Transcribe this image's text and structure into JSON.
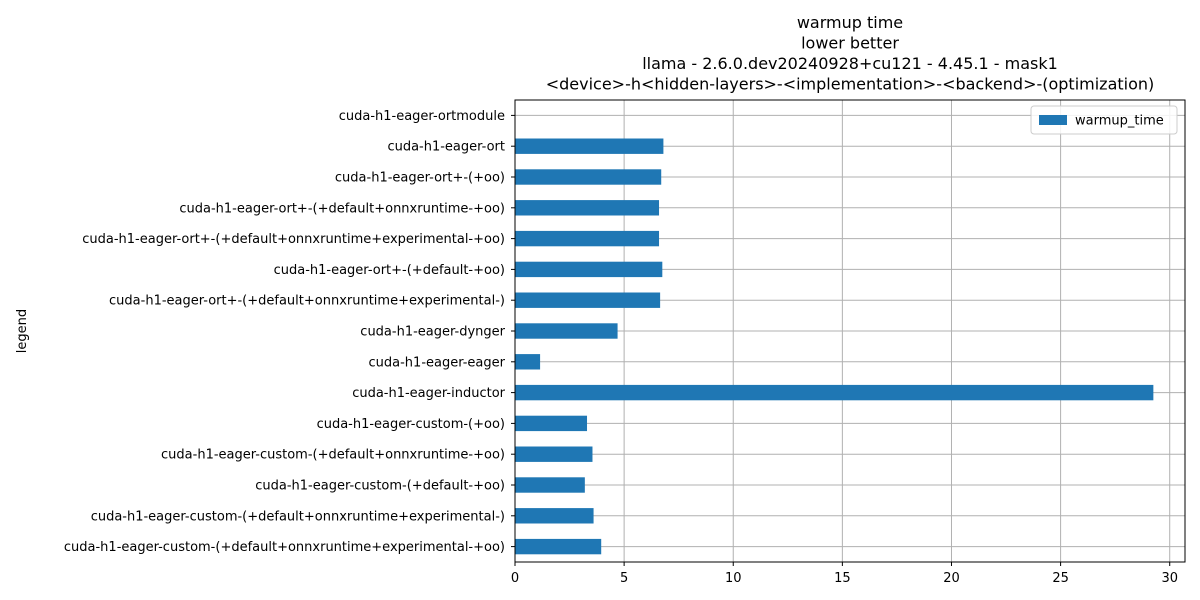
{
  "chart_data": {
    "type": "bar",
    "orientation": "horizontal",
    "title_lines": [
      "warmup time",
      "lower better",
      "llama - 2.6.0.dev20240928+cu121 - 4.45.1 - mask1",
      "<device>-h<hidden-layers>-<implementation>-<backend>-(optimization)"
    ],
    "xlabel": "",
    "ylabel": "legend",
    "xlim": [
      0,
      30.7
    ],
    "xticks": [
      0,
      5,
      10,
      15,
      20,
      25,
      30
    ],
    "grid": true,
    "legend_position": "top-right",
    "categories": [
      "cuda-h1-eager-ortmodule",
      "cuda-h1-eager-ort",
      "cuda-h1-eager-ort+-(+oo)",
      "cuda-h1-eager-ort+-(+default+onnxruntime-+oo)",
      "cuda-h1-eager-ort+-(+default+onnxruntime+experimental-+oo)",
      "cuda-h1-eager-ort+-(+default-+oo)",
      "cuda-h1-eager-ort+-(+default+onnxruntime+experimental-)",
      "cuda-h1-eager-dynger",
      "cuda-h1-eager-eager",
      "cuda-h1-eager-inductor",
      "cuda-h1-eager-custom-(+oo)",
      "cuda-h1-eager-custom-(+default+onnxruntime-+oo)",
      "cuda-h1-eager-custom-(+default-+oo)",
      "cuda-h1-eager-custom-(+default+onnxruntime+experimental-)",
      "cuda-h1-eager-custom-(+default+onnxruntime+experimental-+oo)"
    ],
    "series": [
      {
        "name": "warmup_time",
        "color": "#1f77b4",
        "values": [
          0,
          6.8,
          6.7,
          6.6,
          6.6,
          6.75,
          6.65,
          4.7,
          1.15,
          29.25,
          3.3,
          3.55,
          3.2,
          3.6,
          3.95
        ]
      }
    ]
  }
}
